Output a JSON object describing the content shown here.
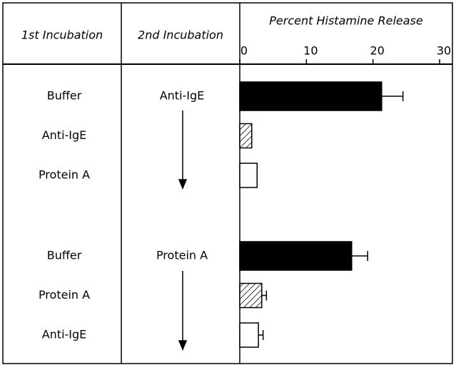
{
  "chart_data": {
    "type": "bar",
    "title": "Percent Histamine Release",
    "column_headers": [
      "1st Incubation",
      "2nd Incubation"
    ],
    "categories": [
      "Buffer",
      "Anti-IgE",
      "Protein A",
      "Buffer",
      "Protein A",
      "Anti-IgE"
    ],
    "second_incubation": [
      "Anti-IgE",
      null,
      null,
      "Protein A",
      null,
      null
    ],
    "values": [
      21.3,
      1.8,
      2.6,
      16.8,
      3.3,
      2.8
    ],
    "errors": [
      3.2,
      null,
      null,
      2.4,
      0.7,
      0.7
    ],
    "fills": [
      "black",
      "hatched",
      "white",
      "black",
      "hatched",
      "white"
    ],
    "xlim": [
      0,
      30
    ],
    "xticks": [
      0,
      10,
      20,
      30
    ]
  }
}
